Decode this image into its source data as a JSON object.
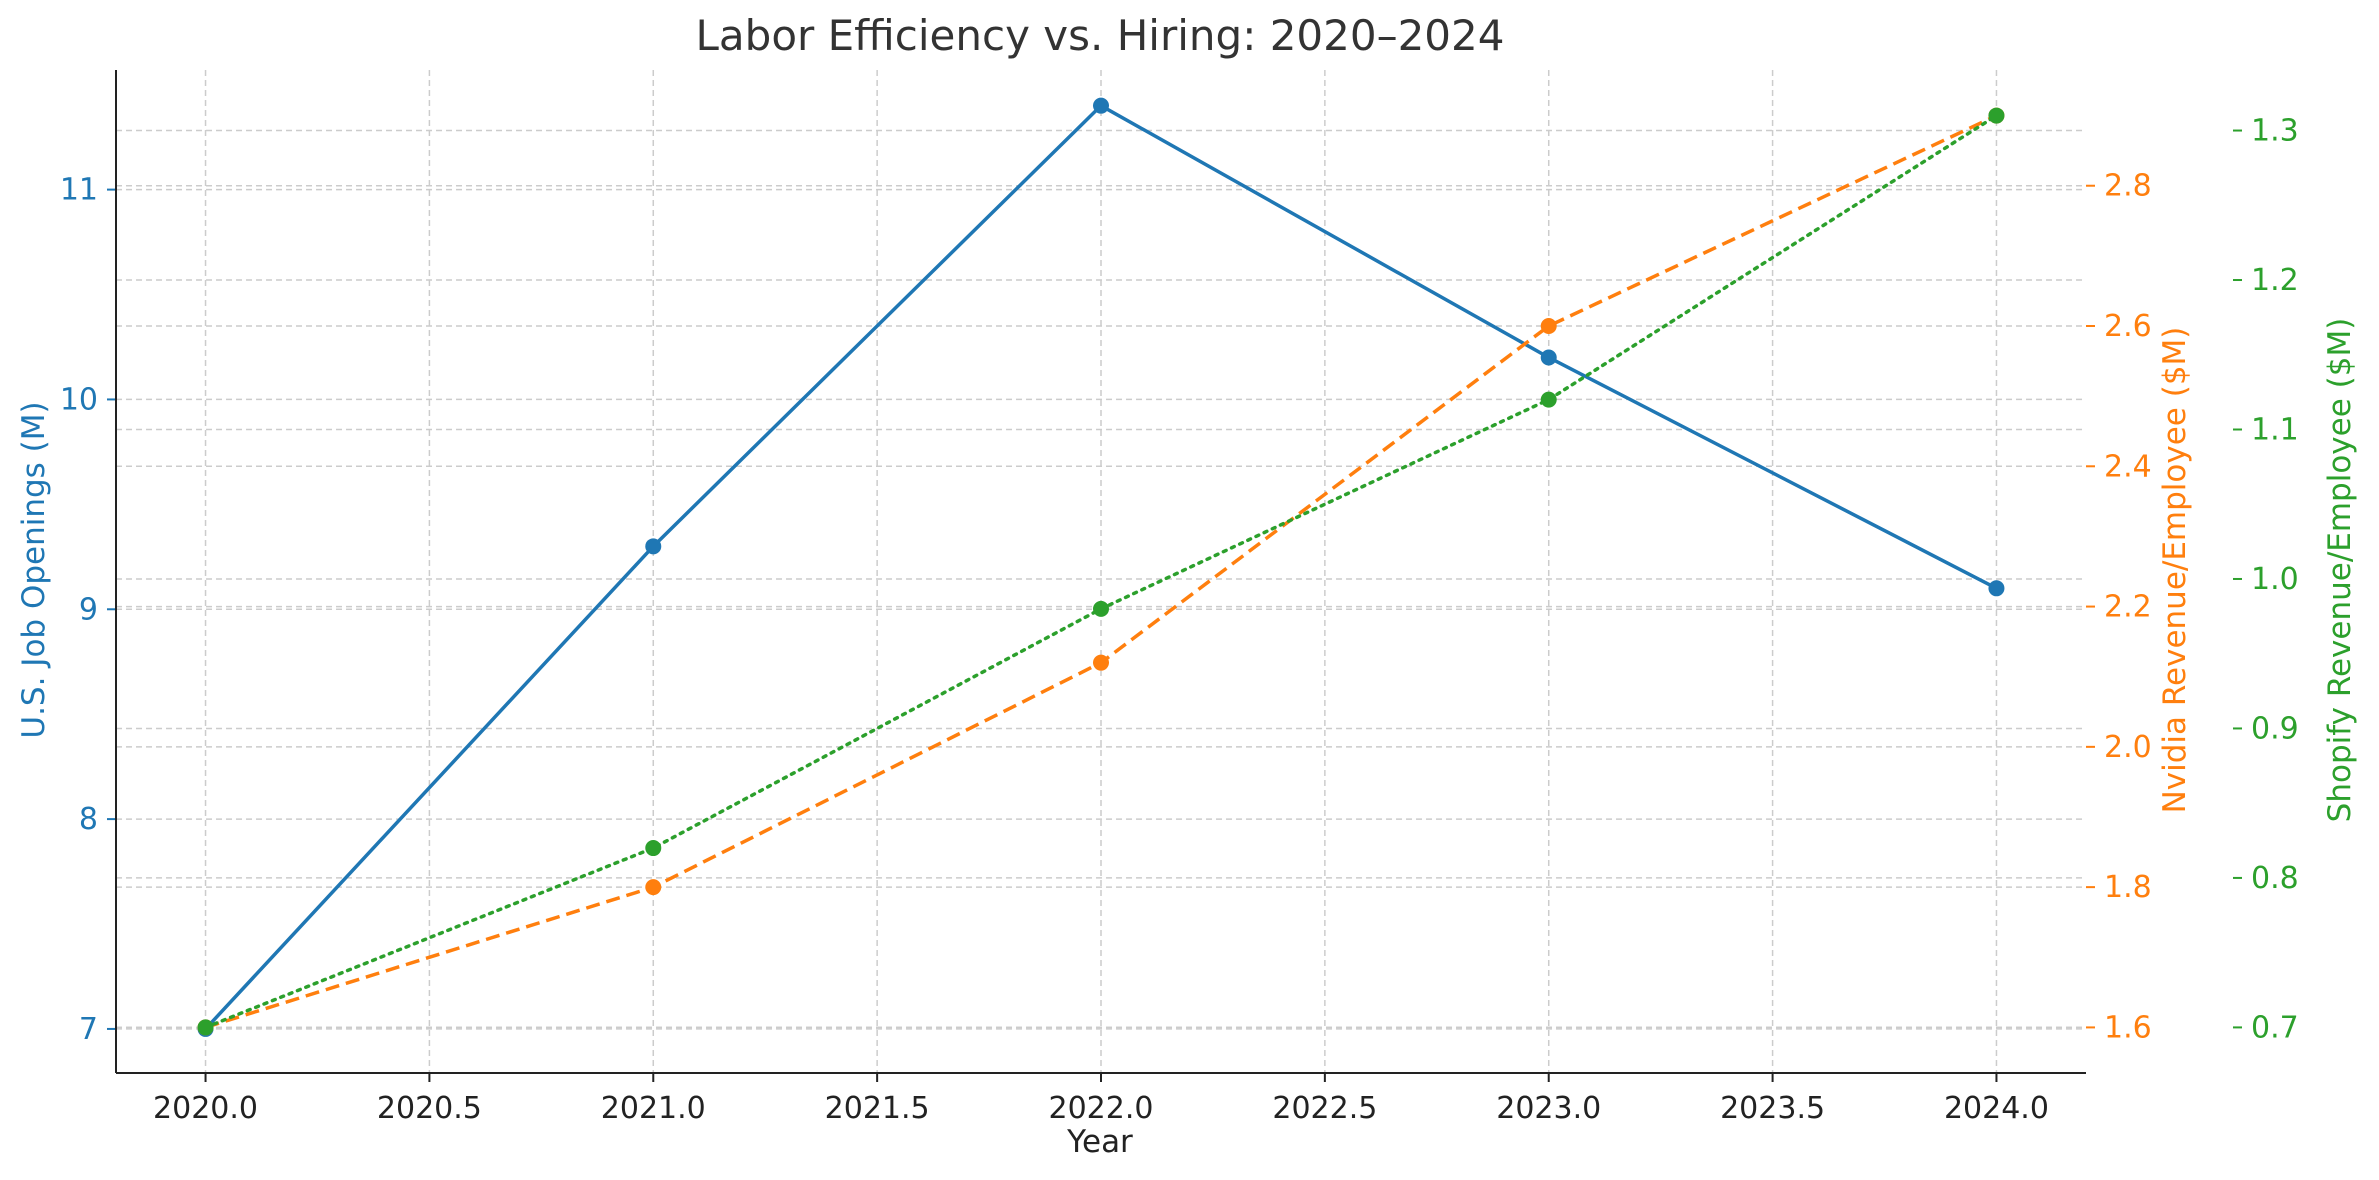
{
  "chart_data": {
    "type": "line",
    "title": "Labor Efficiency vs. Hiring: 2020–2024",
    "xlabel": "Year",
    "x": [
      2020,
      2021,
      2022,
      2023,
      2024
    ],
    "xlim": [
      2019.8,
      2024.2
    ],
    "xticks": [
      "2020.0",
      "2020.5",
      "2021.0",
      "2021.5",
      "2022.0",
      "2022.5",
      "2023.0",
      "2023.5",
      "2024.0"
    ],
    "grid": true,
    "legend": "none",
    "axes": [
      {
        "id": "left",
        "label": "U.S. Job Openings (M)",
        "color": "#1f77b4",
        "ylim": [
          6.79,
          11.57
        ],
        "ticks": [
          "7",
          "8",
          "9",
          "10",
          "11"
        ]
      },
      {
        "id": "right1",
        "label": "Nvidia Revenue/Employee ($M)",
        "color": "#ff7f0e",
        "ylim": [
          1.535,
          2.965
        ],
        "ticks": [
          "1.6",
          "1.8",
          "2.0",
          "2.2",
          "2.4",
          "2.6",
          "2.8"
        ]
      },
      {
        "id": "right2",
        "label": "Shopify Revenue/Employee ($M)",
        "color": "#2ca02c",
        "ylim": [
          0.6695,
          1.3405
        ],
        "ticks": [
          "0.7",
          "0.8",
          "0.9",
          "1.0",
          "1.1",
          "1.2",
          "1.3"
        ]
      }
    ],
    "series": [
      {
        "axis": "left",
        "color": "#1f77b4",
        "style": "solid",
        "values": [
          7.0,
          9.3,
          11.4,
          10.2,
          9.1
        ]
      },
      {
        "axis": "right1",
        "color": "#ff7f0e",
        "style": "dashed",
        "values": [
          1.6,
          1.8,
          2.12,
          2.6,
          2.9
        ]
      },
      {
        "axis": "right2",
        "color": "#2ca02c",
        "style": "dotted",
        "values": [
          0.7,
          0.82,
          0.98,
          1.12,
          1.31
        ]
      }
    ]
  }
}
